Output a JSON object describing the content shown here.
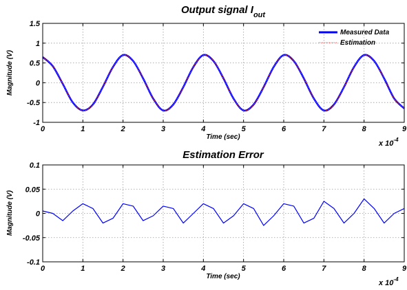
{
  "chart_data": [
    {
      "type": "line",
      "title": "Output signal I",
      "title_subscript": "out",
      "xlabel": "Time (sec)",
      "ylabel": "Magnitude (V)",
      "x_multiplier": "x 10",
      "x_multiplier_exp": "-4",
      "xlim": [
        0,
        9
      ],
      "ylim": [
        -1,
        1.5
      ],
      "x_ticks": [
        "0",
        "1",
        "2",
        "3",
        "4",
        "5",
        "6",
        "7",
        "8",
        "9"
      ],
      "y_ticks": [
        "-1",
        "-0.5",
        "0",
        "0.5",
        "1",
        "1.5"
      ],
      "grid": true,
      "legend_position": "top-right",
      "series": [
        {
          "name": "Measured Data",
          "color": "#0000ff",
          "style": "solid",
          "x": [
            0,
            0.25,
            0.5,
            0.75,
            1.0,
            1.25,
            1.5,
            1.75,
            2.0,
            2.25,
            2.5,
            2.75,
            3.0,
            3.25,
            3.5,
            3.75,
            4.0,
            4.25,
            4.5,
            4.75,
            5.0,
            5.25,
            5.5,
            5.75,
            6.0,
            6.25,
            6.5,
            6.75,
            7.0,
            7.25,
            7.5,
            7.75,
            8.0,
            8.25,
            8.5,
            8.75,
            9.0
          ],
          "values": [
            0.65,
            0.42,
            -0.03,
            -0.5,
            -0.7,
            -0.55,
            -0.1,
            0.4,
            0.7,
            0.55,
            0.11,
            -0.4,
            -0.7,
            -0.55,
            -0.11,
            0.4,
            0.7,
            0.55,
            0.11,
            -0.4,
            -0.7,
            -0.55,
            -0.11,
            0.4,
            0.7,
            0.55,
            0.11,
            -0.4,
            -0.7,
            -0.55,
            -0.11,
            0.4,
            0.7,
            0.55,
            0.11,
            -0.4,
            -0.65
          ]
        },
        {
          "name": "Estimation",
          "color": "#ff5555",
          "style": "dotted",
          "x": [
            0,
            0.25,
            0.5,
            0.75,
            1.0,
            1.25,
            1.5,
            1.75,
            2.0,
            2.25,
            2.5,
            2.75,
            3.0,
            3.25,
            3.5,
            3.75,
            4.0,
            4.25,
            4.5,
            4.75,
            5.0,
            5.25,
            5.5,
            5.75,
            6.0,
            6.25,
            6.5,
            6.75,
            7.0,
            7.25,
            7.5,
            7.75,
            8.0,
            8.25,
            8.5,
            8.75,
            9.0
          ],
          "values": [
            0.65,
            0.42,
            -0.03,
            -0.5,
            -0.7,
            -0.55,
            -0.1,
            0.4,
            0.7,
            0.55,
            0.11,
            -0.4,
            -0.7,
            -0.55,
            -0.11,
            0.4,
            0.7,
            0.55,
            0.11,
            -0.4,
            -0.7,
            -0.55,
            -0.11,
            0.4,
            0.7,
            0.55,
            0.11,
            -0.4,
            -0.7,
            -0.55,
            -0.11,
            0.4,
            0.7,
            0.55,
            0.11,
            -0.4,
            -0.65
          ]
        }
      ]
    },
    {
      "type": "line",
      "title": "Estimation Error",
      "xlabel": "Time (sec)",
      "ylabel": "Magnitude (V)",
      "x_multiplier": "x 10",
      "x_multiplier_exp": "-4",
      "xlim": [
        0,
        9
      ],
      "ylim": [
        -0.1,
        0.1
      ],
      "x_ticks": [
        "0",
        "1",
        "2",
        "3",
        "4",
        "5",
        "6",
        "7",
        "8",
        "9"
      ],
      "y_ticks": [
        "-0.1",
        "-0.05",
        "0",
        "0.05",
        "0.1"
      ],
      "grid": true,
      "series": [
        {
          "color": "#0000ff",
          "style": "solid",
          "x": [
            0,
            0.25,
            0.5,
            0.75,
            1.0,
            1.25,
            1.5,
            1.75,
            2.0,
            2.25,
            2.5,
            2.75,
            3.0,
            3.25,
            3.5,
            3.75,
            4.0,
            4.25,
            4.5,
            4.75,
            5.0,
            5.25,
            5.5,
            5.75,
            6.0,
            6.25,
            6.5,
            6.75,
            7.0,
            7.25,
            7.5,
            7.75,
            8.0,
            8.25,
            8.5,
            8.75,
            9.0
          ],
          "values": [
            0.005,
            0.0,
            -0.015,
            0.005,
            0.02,
            0.01,
            -0.02,
            -0.01,
            0.02,
            0.015,
            -0.015,
            -0.005,
            0.015,
            0.01,
            -0.02,
            0.0,
            0.02,
            0.01,
            -0.02,
            -0.005,
            0.02,
            0.01,
            -0.025,
            -0.005,
            0.02,
            0.015,
            -0.02,
            -0.01,
            0.025,
            0.01,
            -0.02,
            0.0,
            0.03,
            0.01,
            -0.02,
            0.0,
            0.01
          ]
        }
      ]
    }
  ]
}
